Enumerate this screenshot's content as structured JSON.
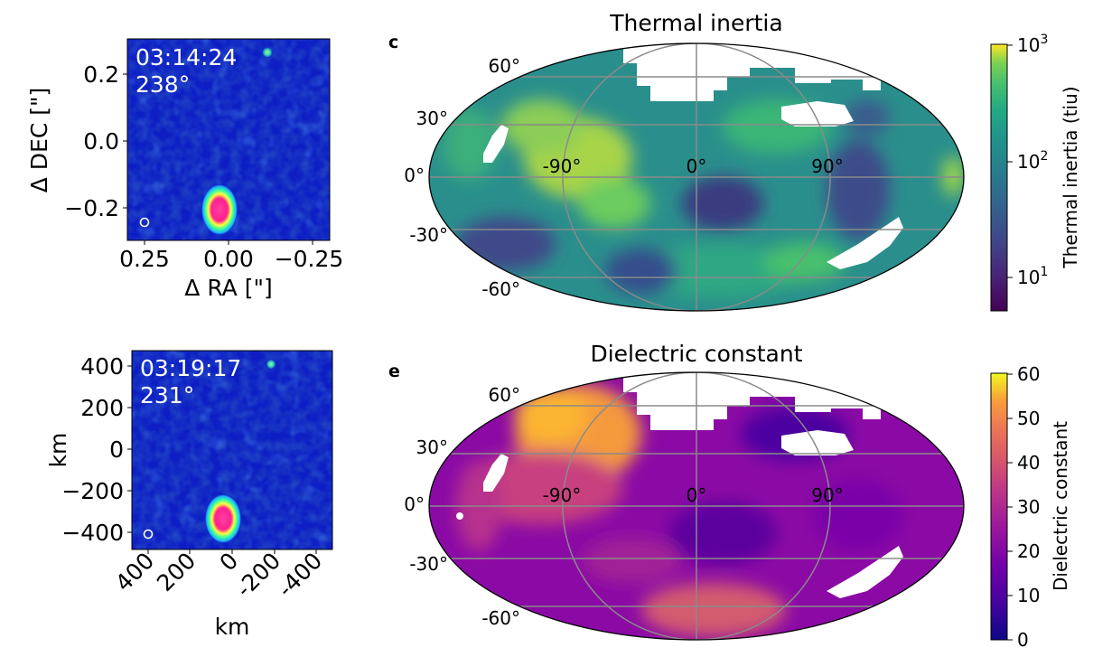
{
  "chart_data": [
    {
      "type": "heatmap",
      "panel": "upper-left image",
      "timestamp": "03:14:24",
      "angle": "238°",
      "xlabel": "Δ RA [\"]",
      "ylabel": "Δ DEC [\"]",
      "xticks": [
        "0.25",
        "0.00",
        "−0.25"
      ],
      "yticks": [
        "0.2",
        "0.0",
        "−0.2"
      ],
      "xlim": [
        0.3,
        -0.3
      ],
      "ylim": [
        -0.3,
        0.3
      ]
    },
    {
      "type": "heatmap",
      "panel": "lower-left image",
      "timestamp": "03:19:17",
      "angle": "231°",
      "xlabel": "km",
      "ylabel": "km",
      "xticks": [
        "400",
        "200",
        "0",
        "-200",
        "-400"
      ],
      "yticks": [
        "400",
        "200",
        "0",
        "−200",
        "−400"
      ],
      "xlim": [
        480,
        -480
      ],
      "ylim": [
        -480,
        480
      ]
    },
    {
      "type": "heatmap",
      "panel_letter": "c",
      "title": "Thermal inertia",
      "projection": "mollweide",
      "lon_labels": [
        "-90°",
        "0°",
        "90°"
      ],
      "lat_labels": [
        "60°",
        "30°",
        "0°",
        "-30°",
        "-60°"
      ],
      "colorbar": {
        "label": "Thermal inertia (tiu)",
        "scale": "log",
        "ticks": [
          "10",
          "10",
          "10"
        ],
        "tick_exponents": [
          "3",
          "2",
          "1"
        ],
        "range": [
          5,
          1000
        ],
        "colormap": "viridis"
      }
    },
    {
      "type": "heatmap",
      "panel_letter": "e",
      "title": "Dielectric constant",
      "projection": "mollweide",
      "lon_labels": [
        "-90°",
        "0°",
        "90°"
      ],
      "lat_labels": [
        "60°",
        "30°",
        "0°",
        "-30°",
        "-60°"
      ],
      "colorbar": {
        "label": "Dielectric constant",
        "scale": "linear",
        "ticks": [
          "60",
          "50",
          "40",
          "30",
          "20",
          "10",
          "0"
        ],
        "range": [
          0,
          60
        ],
        "colormap": "plasma"
      }
    }
  ],
  "colors": {
    "image_bg": "#0d1fc4",
    "image_dark": "#051074",
    "map_grid": "#8a8a8a",
    "viridis_low": "#440154",
    "viridis_mid": "#21918c",
    "viridis_high": "#fde725",
    "plasma_low": "#0d0887",
    "plasma_mid": "#cc4778",
    "plasma_high": "#f0f921"
  }
}
